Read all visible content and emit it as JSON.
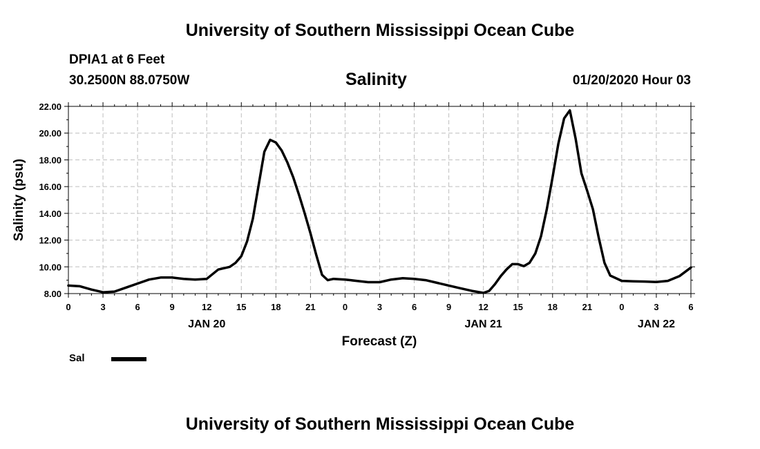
{
  "header": {
    "title": "University of Southern Mississippi Ocean Cube",
    "station": "DPIA1 at 6 Feet",
    "coordinates": "30.2500N 88.0750W",
    "variable": "Salinity",
    "datetime": "01/20/2020 Hour 03"
  },
  "footer": {
    "title": "University of Southern Mississippi Ocean Cube"
  },
  "legend": {
    "label": "Sal"
  },
  "chart_data": {
    "type": "line",
    "title": "Salinity",
    "xlabel": "Forecast (Z)",
    "ylabel": "Salinity (psu)",
    "xlim": [
      0,
      54
    ],
    "ylim": [
      8,
      22
    ],
    "grid": true,
    "y_ticks": [
      "8.00",
      "10.00",
      "12.00",
      "14.00",
      "16.00",
      "18.00",
      "20.00",
      "22.00"
    ],
    "x_ticks": [
      "0",
      "3",
      "6",
      "9",
      "12",
      "15",
      "18",
      "21",
      "0",
      "3",
      "6",
      "9",
      "12",
      "15",
      "18",
      "21",
      "0",
      "3",
      "6"
    ],
    "day_labels": [
      {
        "label": "JAN 20",
        "at_hour": 12
      },
      {
        "label": "JAN 21",
        "at_hour": 36
      },
      {
        "label": "JAN 22",
        "at_hour": 51
      }
    ],
    "legend_position": "bottom-left",
    "series": [
      {
        "name": "Sal",
        "color": "#000000",
        "x": [
          0,
          1,
          2,
          3,
          4,
          5,
          6,
          7,
          8,
          9,
          10,
          11,
          12,
          13,
          14,
          14.5,
          15,
          15.5,
          16,
          16.5,
          17,
          17.5,
          18,
          18.5,
          19,
          19.5,
          20,
          20.5,
          21,
          21.5,
          22,
          22.5,
          23,
          24,
          25,
          26,
          27,
          28,
          29,
          30,
          31,
          32,
          33,
          34,
          35,
          36,
          36.5,
          37,
          37.5,
          38,
          38.5,
          39,
          39.5,
          40,
          40.5,
          41,
          41.5,
          42,
          42.5,
          43,
          43.5,
          44,
          44.5,
          45,
          45.5,
          46,
          46.5,
          47,
          48,
          49,
          50,
          51,
          52,
          53,
          54
        ],
        "y": [
          8.6,
          8.55,
          8.3,
          8.1,
          8.15,
          8.45,
          8.75,
          9.05,
          9.2,
          9.2,
          9.1,
          9.05,
          9.1,
          9.8,
          10.0,
          10.3,
          10.8,
          11.9,
          13.6,
          16.1,
          18.6,
          19.5,
          19.3,
          18.7,
          17.8,
          16.7,
          15.4,
          14.0,
          12.5,
          10.9,
          9.4,
          9.0,
          9.1,
          9.05,
          8.95,
          8.85,
          8.85,
          9.05,
          9.15,
          9.1,
          9.0,
          8.8,
          8.6,
          8.4,
          8.2,
          8.05,
          8.2,
          8.7,
          9.3,
          9.8,
          10.2,
          10.2,
          10.05,
          10.3,
          11.0,
          12.3,
          14.3,
          16.7,
          19.2,
          21.1,
          21.7,
          19.6,
          17.0,
          15.7,
          14.3,
          12.2,
          10.3,
          9.35,
          8.95,
          8.92,
          8.9,
          8.87,
          8.95,
          9.3,
          9.95
        ]
      }
    ]
  }
}
